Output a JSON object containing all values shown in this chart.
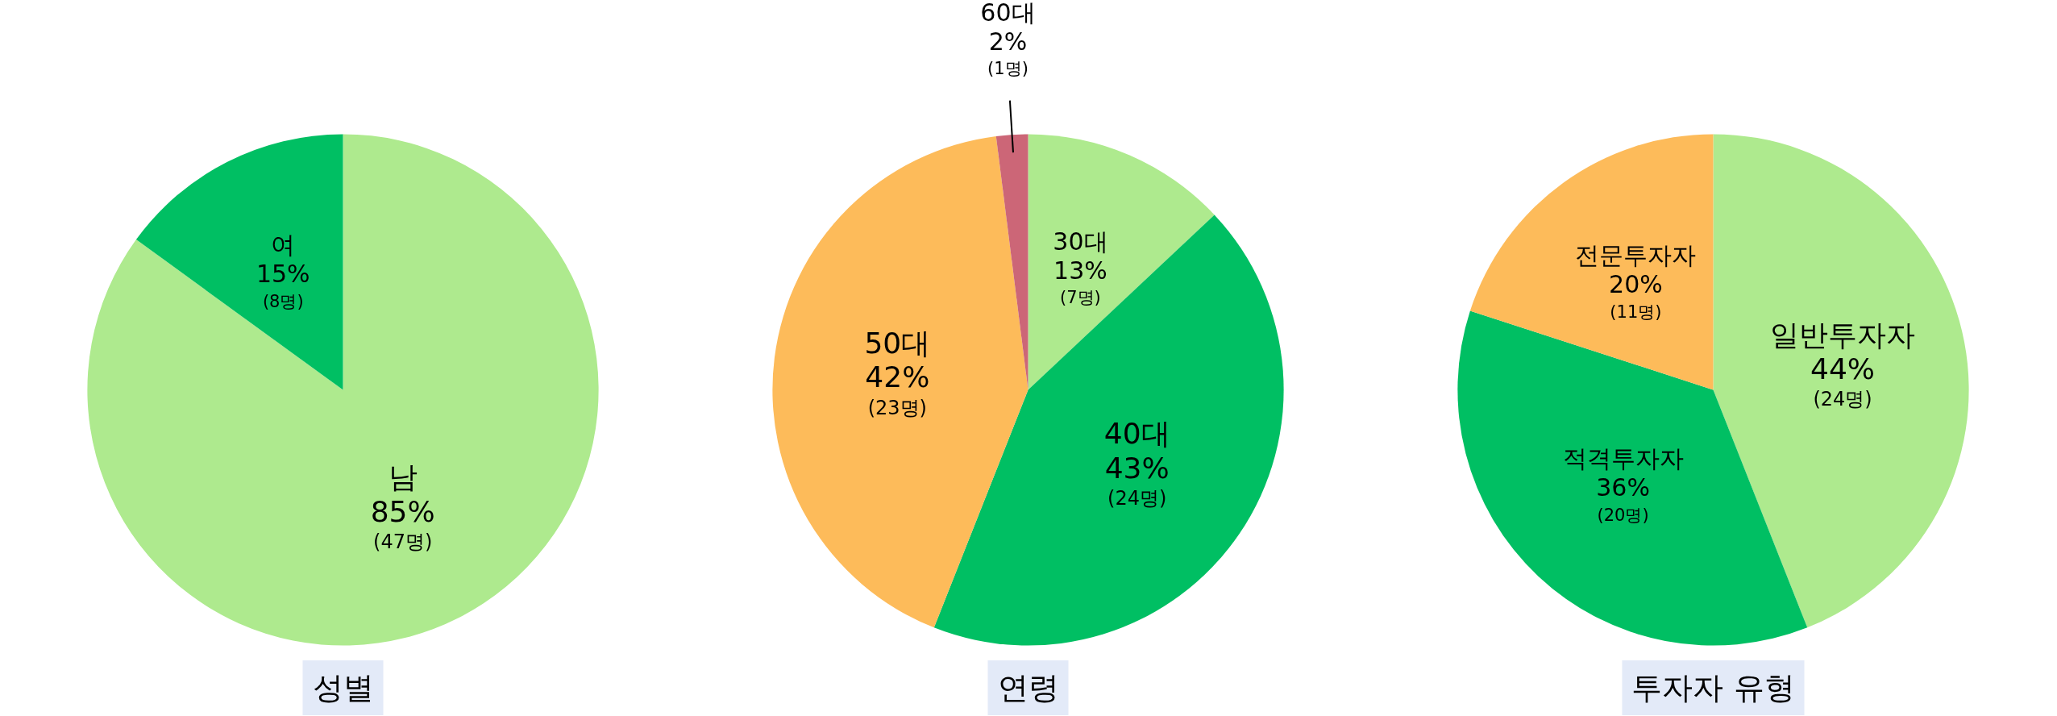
{
  "chart_data": [
    {
      "type": "pie",
      "title": "성별",
      "categories": [
        "남",
        "여"
      ],
      "values": [
        85,
        15
      ],
      "value_labels": [
        "85%\n(47명)",
        "15%\n(8명)"
      ],
      "colors": [
        "#aeea8e",
        "#00bf63"
      ],
      "data_labels": true,
      "legend": false
    },
    {
      "type": "pie",
      "title": "연령",
      "categories": [
        "30대",
        "40대",
        "50대",
        "60대"
      ],
      "values": [
        13,
        43,
        42,
        2
      ],
      "value_labels": [
        "13%\n(7명)",
        "43%\n(24명)",
        "42%\n(23명)",
        "2%\n(1명)"
      ],
      "colors": [
        "#aeea8e",
        "#00bf63",
        "#fdbb5a",
        "#cc6677"
      ],
      "data_labels": true,
      "legend": false
    },
    {
      "type": "pie",
      "title": "투자자 유형",
      "categories": [
        "일반투자자",
        "적격투자자",
        "전문투자자"
      ],
      "values": [
        44,
        36,
        20
      ],
      "value_labels": [
        "44%\n(24명)",
        "36%\n(20명)",
        "20%\n(11명)"
      ],
      "colors": [
        "#aeea8e",
        "#00bf63",
        "#fdbb5a"
      ],
      "data_labels": true,
      "legend": false
    }
  ]
}
